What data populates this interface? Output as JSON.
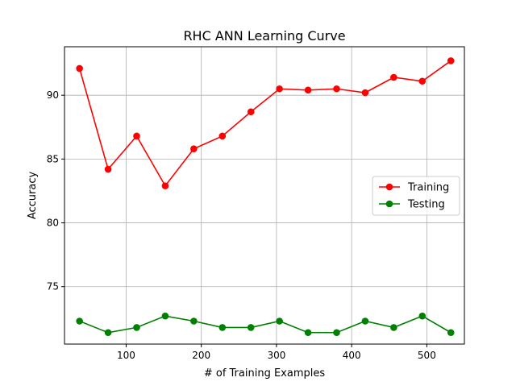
{
  "chart_data": {
    "type": "line",
    "title": "RHC ANN Learning Curve",
    "xlabel": "# of Training Examples",
    "ylabel": "Accuracy",
    "xlim": [
      18,
      550
    ],
    "ylim": [
      70.5,
      93.8
    ],
    "x_ticks": [
      100,
      200,
      300,
      400,
      500
    ],
    "y_ticks": [
      75,
      80,
      85,
      90
    ],
    "grid": true,
    "legend_position": "center-right",
    "x": [
      38,
      76,
      114,
      152,
      190,
      228,
      266,
      304,
      342,
      380,
      418,
      456,
      494,
      532
    ],
    "series": [
      {
        "name": "Training",
        "color": "#ff0000",
        "marker": "circle",
        "values": [
          92.1,
          84.2,
          86.8,
          82.9,
          85.8,
          86.8,
          88.7,
          90.5,
          90.4,
          90.5,
          90.2,
          91.4,
          91.1,
          92.7
        ]
      },
      {
        "name": "Testing",
        "color": "#008000",
        "marker": "circle",
        "values": [
          72.3,
          71.4,
          71.8,
          72.7,
          72.3,
          71.8,
          71.8,
          72.3,
          71.4,
          71.4,
          72.3,
          71.8,
          72.7,
          71.4
        ]
      }
    ]
  }
}
